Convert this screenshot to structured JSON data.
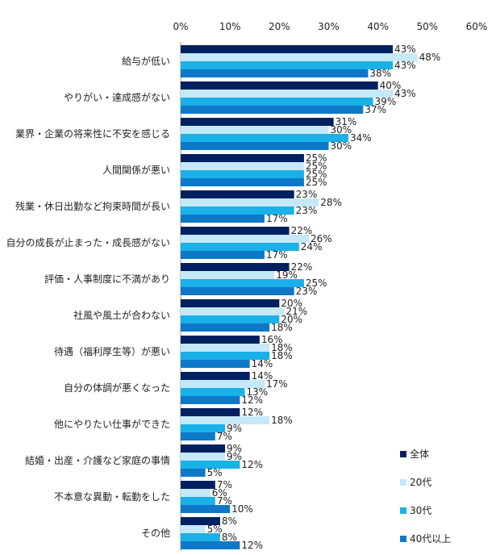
{
  "chart_data": {
    "type": "bar",
    "orientation": "horizontal",
    "title": "",
    "xlabel": "",
    "ylabel": "",
    "xlim": [
      0,
      60
    ],
    "tick_labels": [
      "0%",
      "10%",
      "20%",
      "30%",
      "40%",
      "50%",
      "60%"
    ],
    "ticks": [
      0,
      10,
      20,
      30,
      40,
      50,
      60
    ],
    "axis_position": "top",
    "grid": false,
    "legend_position": "bottom-right",
    "categories": [
      "給与が低い",
      "やりがい・達成感がない",
      "業界・企業の将来性に不安を感じる",
      "人間関係が悪い",
      "残業・休日出勤など拘束時間が長い",
      "自分の成長が止まった・成長感がない",
      "評価・人事制度に不満があり",
      "社風や風土が合わない",
      "待遇（福利厚生等）が悪い",
      "自分の体調が悪くなった",
      "他にやりたい仕事ができた",
      "結婚・出産・介護など家庭の事情",
      "不本意な異動・転勤をした",
      "その他"
    ],
    "series": [
      {
        "name": "全体",
        "color": "#002060",
        "values": [
          43,
          40,
          31,
          25,
          23,
          22,
          22,
          20,
          16,
          14,
          12,
          9,
          7,
          8
        ]
      },
      {
        "name": "20代",
        "color": "#c5e9f8",
        "values": [
          48,
          43,
          30,
          25,
          28,
          26,
          19,
          21,
          18,
          17,
          18,
          9,
          6,
          5
        ]
      },
      {
        "name": "30代",
        "color": "#1ab0e8",
        "values": [
          43,
          39,
          34,
          25,
          23,
          24,
          25,
          20,
          18,
          13,
          9,
          12,
          7,
          8
        ]
      },
      {
        "name": "40代以上",
        "color": "#0e78c8",
        "values": [
          38,
          37,
          30,
          25,
          17,
          17,
          23,
          18,
          14,
          12,
          7,
          5,
          10,
          12
        ]
      }
    ],
    "value_suffix": "%"
  }
}
